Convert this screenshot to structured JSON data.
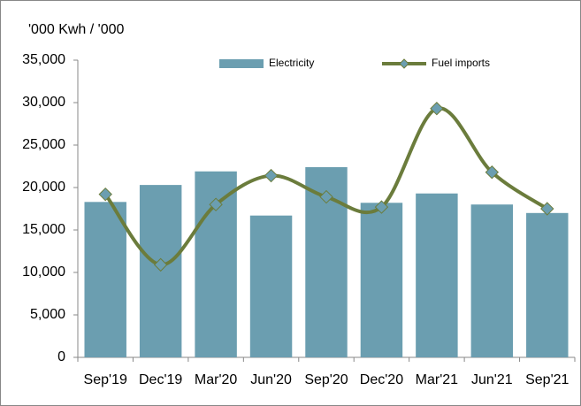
{
  "chart_data": {
    "type": "bar_line",
    "y_label": "'000 Kwh / '000",
    "categories": [
      "Sep'19",
      "Dec'19",
      "Mar'20",
      "Jun'20",
      "Sep'20",
      "Dec'20",
      "Mar'21",
      "Jun'21",
      "Sep'21"
    ],
    "series": [
      {
        "name": "Electricity",
        "type": "bar",
        "color": "#6b9eb0",
        "values": [
          18300,
          20300,
          21900,
          16700,
          22400,
          18200,
          19300,
          18000,
          17000
        ]
      },
      {
        "name": "Fuel imports",
        "type": "line",
        "color": "#6b7c3c",
        "marker_color": "#6b9eb0",
        "values": [
          19200,
          10900,
          18000,
          21400,
          18900,
          17700,
          29300,
          21800,
          17500
        ]
      }
    ],
    "ylim": [
      0,
      35000
    ],
    "yticks": [
      0,
      {
        "value": 5000,
        "label": "5,000"
      },
      {
        "value": 10000,
        "label": "10,000"
      },
      {
        "value": 15000,
        "label": "15,000"
      },
      {
        "value": 20000,
        "label": "20,000"
      },
      {
        "value": 25000,
        "label": "25,000"
      },
      {
        "value": 30000,
        "label": "30,000"
      },
      {
        "value": 35000,
        "label": "35,000"
      }
    ],
    "grid": false,
    "legend": "top"
  }
}
